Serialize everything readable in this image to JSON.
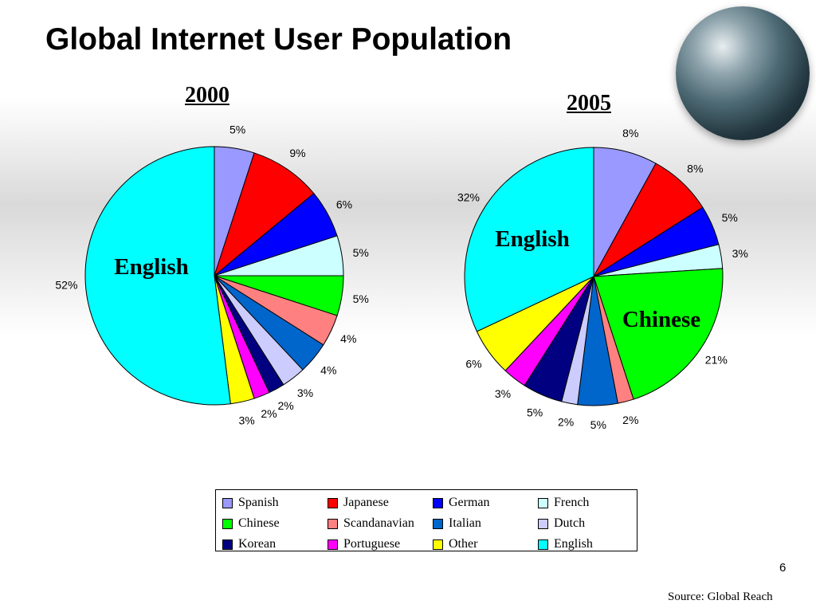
{
  "slide": {
    "title": "Global Internet User Population",
    "slide_number": "6",
    "source": "Source: Global Reach",
    "globe_icon": "globe-icon"
  },
  "chart_data": [
    {
      "type": "pie",
      "title": "2000",
      "categories": [
        "Spanish",
        "Japanese",
        "German",
        "French",
        "Chinese",
        "Scandanavian",
        "Italian",
        "Dutch",
        "Korean",
        "Portuguese",
        "Other",
        "English"
      ],
      "values": [
        5,
        9,
        6,
        5,
        5,
        4,
        4,
        3,
        2,
        2,
        3,
        52
      ],
      "labels": [
        "5%",
        "9%",
        "6%",
        "5%",
        "5%",
        "4%",
        "4%",
        "3%",
        "2%",
        "2%",
        "3%",
        "52%"
      ],
      "annotations": [
        {
          "text": "English",
          "category": "English"
        }
      ],
      "legend": "bottom"
    },
    {
      "type": "pie",
      "title": "2005",
      "categories": [
        "Spanish",
        "Japanese",
        "German",
        "French",
        "Chinese",
        "Scandanavian",
        "Italian",
        "Dutch",
        "Korean",
        "Portuguese",
        "Other",
        "English"
      ],
      "values": [
        8,
        8,
        5,
        3,
        21,
        2,
        5,
        2,
        5,
        3,
        6,
        32
      ],
      "labels": [
        "8%",
        "8%",
        "5%",
        "3%",
        "21%",
        "2%",
        "5%",
        "2%",
        "5%",
        "3%",
        "6%",
        "32%"
      ],
      "annotations": [
        {
          "text": "English",
          "category": "English"
        },
        {
          "text": "Chinese",
          "category": "Chinese"
        }
      ],
      "legend": "bottom"
    }
  ],
  "colors": {
    "Spanish": "#9999ff",
    "Japanese": "#ff0000",
    "German": "#0000ff",
    "French": "#ccffff",
    "Chinese": "#00ff00",
    "Scandanavian": "#ff8080",
    "Italian": "#0066cc",
    "Dutch": "#ccccff",
    "Korean": "#000080",
    "Portuguese": "#ff00ff",
    "Other": "#ffff00",
    "English": "#00ffff"
  },
  "legend": {
    "items": [
      "Spanish",
      "Japanese",
      "German",
      "French",
      "Chinese",
      "Scandanavian",
      "Italian",
      "Dutch",
      "Korean",
      "Portuguese",
      "Other",
      "English"
    ]
  }
}
